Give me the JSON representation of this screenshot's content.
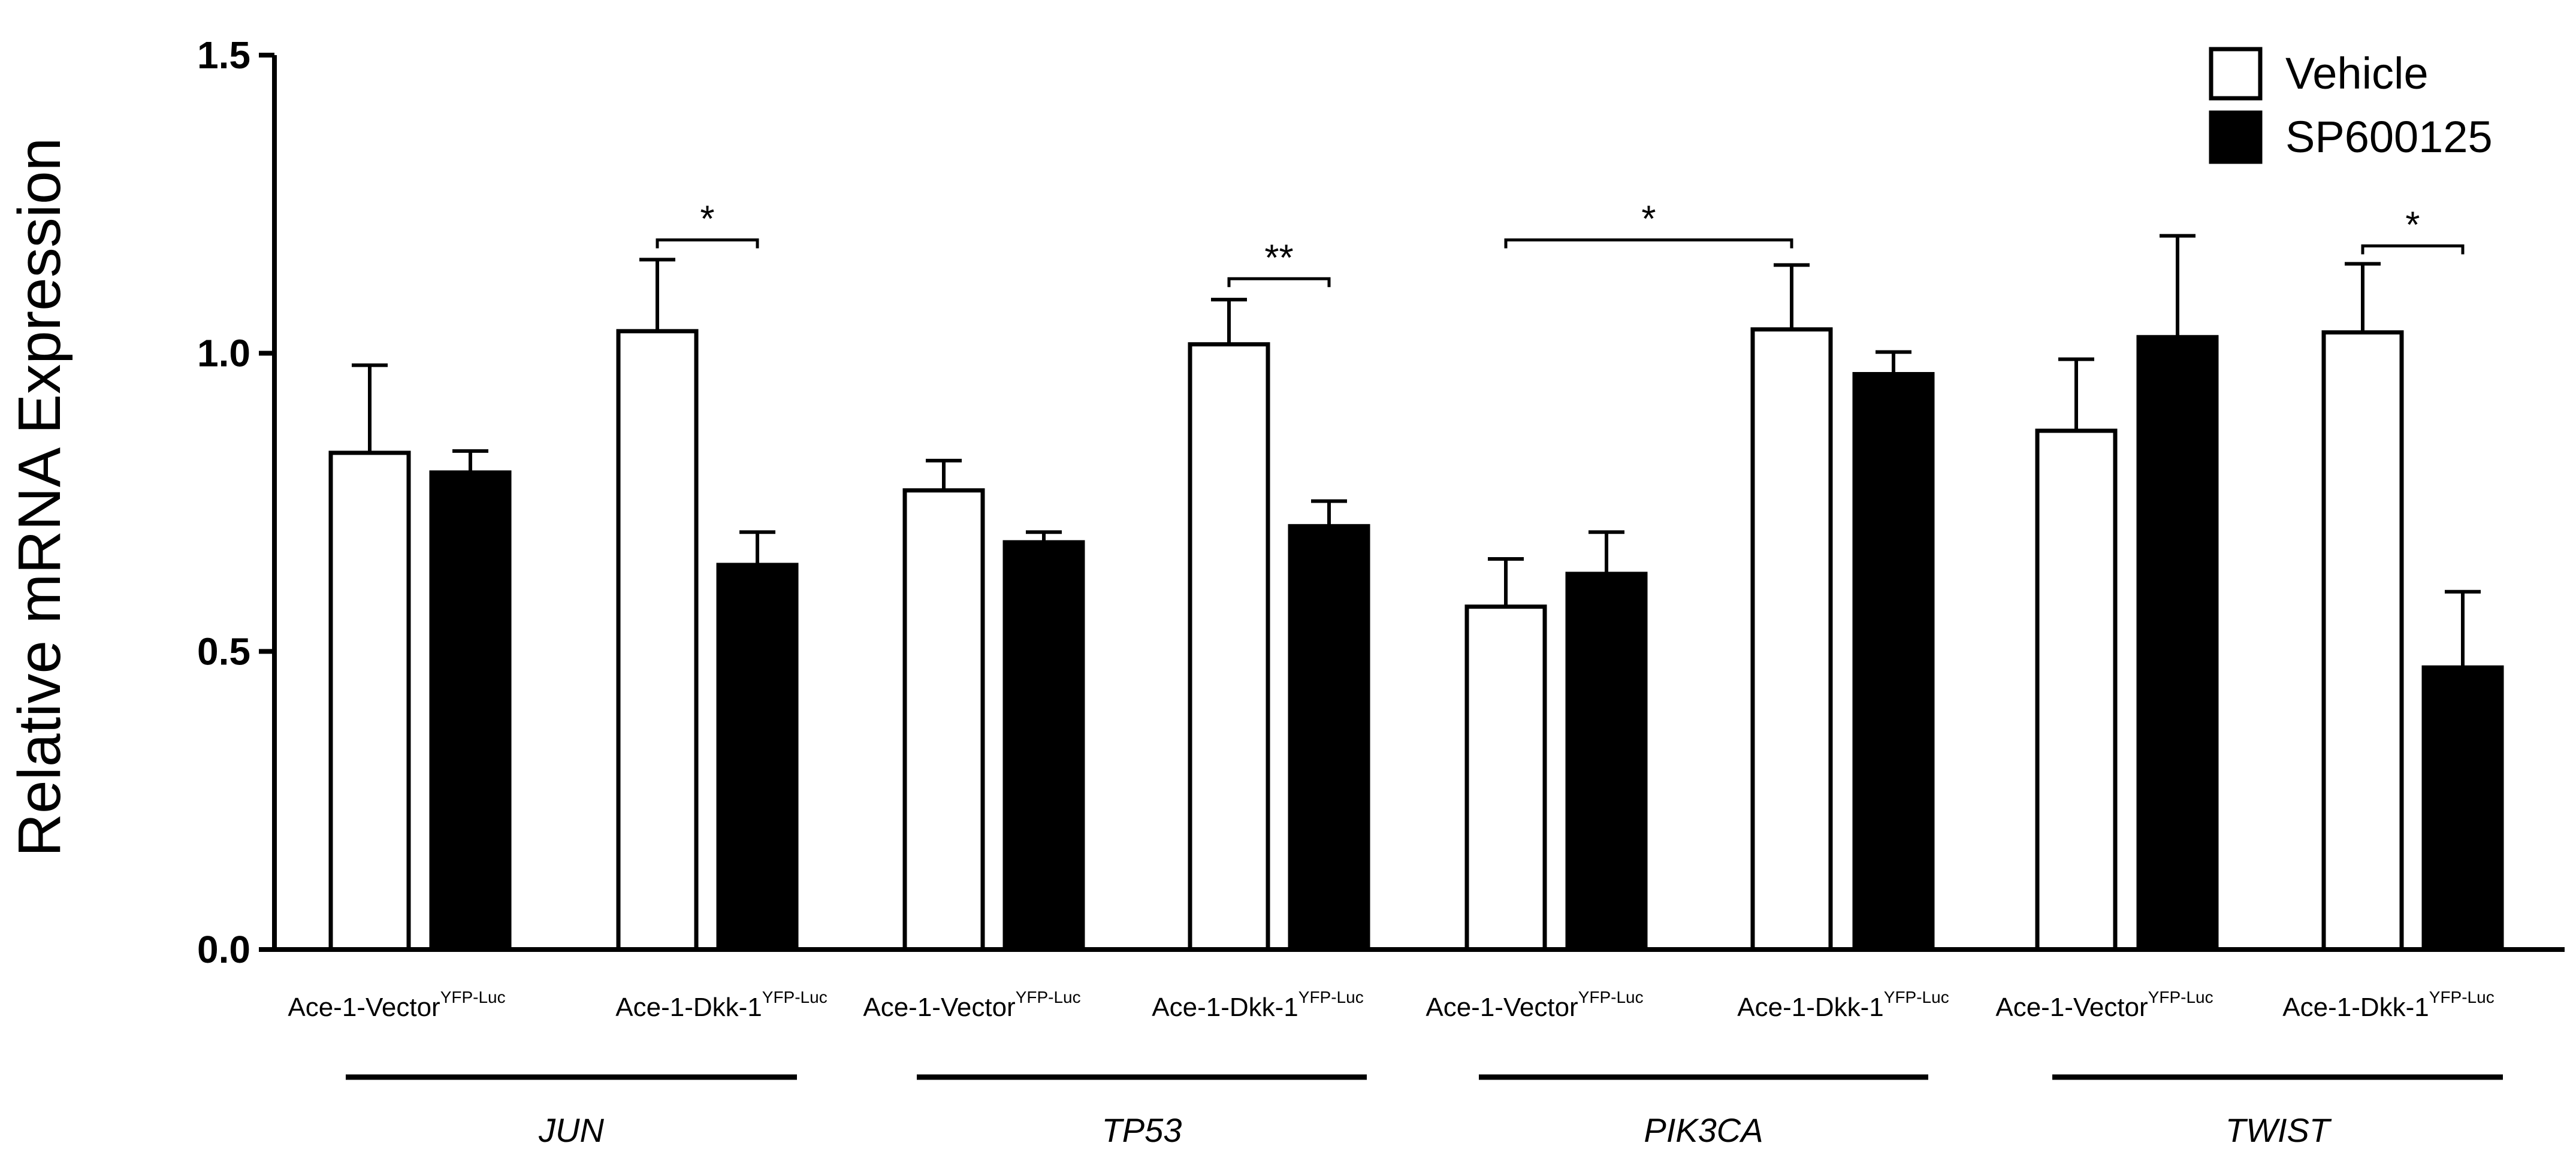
{
  "chart_data": {
    "type": "bar",
    "ylabel": "Relative mRNA Expression",
    "ylim": [
      0,
      1.5
    ],
    "yticks": [
      "0.0",
      "0.5",
      "1.0",
      "1.5"
    ],
    "legend": {
      "position": "top-right",
      "entries": [
        {
          "name": "Vehicle",
          "fill": "#ffffff"
        },
        {
          "name": "SP600125",
          "fill": "#000000"
        }
      ]
    },
    "series": [
      {
        "name": "Vehicle",
        "color": "#ffffff"
      },
      {
        "name": "SP600125",
        "color": "#000000"
      }
    ],
    "gene_groups": [
      {
        "gene": "JUN",
        "cell_lines": [
          {
            "label": "Ace-1-Vector",
            "superscript": "YFP-Luc",
            "values": [
              0.833,
              0.8
            ],
            "errors": [
              0.147,
              0.036
            ]
          },
          {
            "label": "Ace-1-Dkk-1",
            "superscript": "YFP-Luc",
            "values": [
              1.037,
              0.645
            ],
            "errors": [
              0.12,
              0.055
            ]
          }
        ]
      },
      {
        "gene": "TP53",
        "cell_lines": [
          {
            "label": "Ace-1-Vector",
            "superscript": "YFP-Luc",
            "values": [
              0.77,
              0.683
            ],
            "errors": [
              0.05,
              0.017
            ]
          },
          {
            "label": "Ace-1-Dkk-1",
            "superscript": "YFP-Luc",
            "values": [
              1.015,
              0.71
            ],
            "errors": [
              0.075,
              0.042
            ]
          }
        ]
      },
      {
        "gene": "PIK3CA",
        "cell_lines": [
          {
            "label": "Ace-1-Vector",
            "superscript": "YFP-Luc",
            "values": [
              0.575,
              0.63
            ],
            "errors": [
              0.08,
              0.07
            ]
          },
          {
            "label": "Ace-1-Dkk-1",
            "superscript": "YFP-Luc",
            "values": [
              1.04,
              0.965
            ],
            "errors": [
              0.108,
              0.037
            ]
          }
        ]
      },
      {
        "gene": "TWIST",
        "cell_lines": [
          {
            "label": "Ace-1-Vector",
            "superscript": "YFP-Luc",
            "values": [
              0.87,
              1.027
            ],
            "errors": [
              0.12,
              0.17
            ]
          },
          {
            "label": "Ace-1-Dkk-1",
            "superscript": "YFP-Luc",
            "values": [
              1.035,
              0.473
            ],
            "errors": [
              0.115,
              0.127
            ]
          }
        ]
      }
    ],
    "significance": [
      {
        "label": "*",
        "from": {
          "group": 0,
          "line": 1,
          "series": 0
        },
        "to": {
          "group": 0,
          "line": 1,
          "series": 1
        },
        "y": 1.19
      },
      {
        "label": "**",
        "from": {
          "group": 1,
          "line": 1,
          "series": 0
        },
        "to": {
          "group": 1,
          "line": 1,
          "series": 1
        },
        "y": 1.125
      },
      {
        "label": "*",
        "from": {
          "group": 2,
          "line": 0,
          "series": 0
        },
        "to": {
          "group": 2,
          "line": 1,
          "series": 0
        },
        "y": 1.19
      },
      {
        "label": "*",
        "from": {
          "group": 3,
          "line": 1,
          "series": 0
        },
        "to": {
          "group": 3,
          "line": 1,
          "series": 1
        },
        "y": 1.18
      }
    ]
  }
}
